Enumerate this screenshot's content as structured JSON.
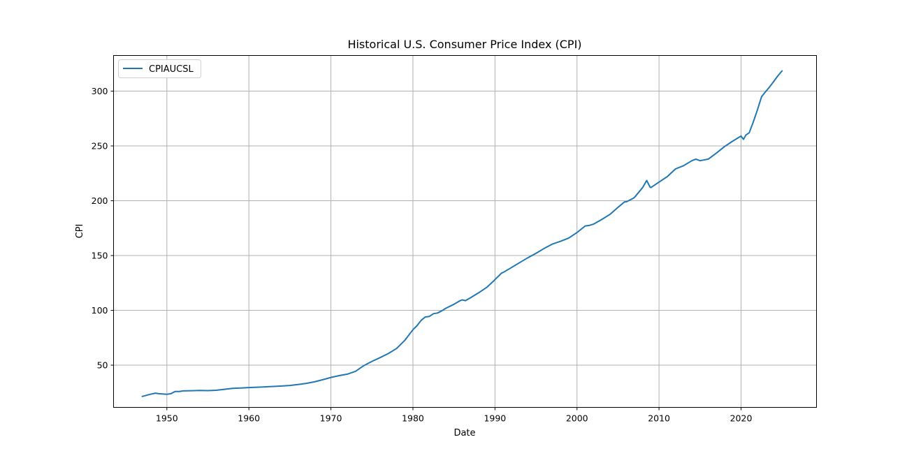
{
  "chart_data": {
    "type": "line",
    "title": "Historical U.S. Consumer Price Index (CPI)",
    "xlabel": "Date",
    "ylabel": "CPI",
    "xlim": [
      1943.5,
      2029.2
    ],
    "ylim": [
      11.5,
      332.5
    ],
    "x_ticks": [
      1950,
      1960,
      1970,
      1980,
      1990,
      2000,
      2010,
      2020
    ],
    "y_ticks": [
      50,
      100,
      150,
      200,
      250,
      300
    ],
    "grid": true,
    "legend_position": "top-left",
    "series": [
      {
        "name": "CPIAUCSL",
        "color": "#1f77b4",
        "x": [
          1947.0,
          1948.0,
          1948.6,
          1949.0,
          1950.0,
          1950.5,
          1951.0,
          1951.5,
          1952.0,
          1953.0,
          1954.0,
          1955.0,
          1956.0,
          1957.0,
          1958.0,
          1959.0,
          1960.0,
          1961.0,
          1962.0,
          1963.0,
          1964.0,
          1965.0,
          1966.0,
          1967.0,
          1968.0,
          1969.0,
          1970.0,
          1971.0,
          1972.0,
          1973.0,
          1974.0,
          1975.0,
          1976.0,
          1977.0,
          1978.0,
          1979.0,
          1980.0,
          1980.5,
          1981.0,
          1981.5,
          1982.0,
          1982.5,
          1983.0,
          1983.5,
          1984.0,
          1985.0,
          1985.8,
          1986.0,
          1986.4,
          1987.0,
          1988.0,
          1989.0,
          1990.0,
          1990.8,
          1991.0,
          1992.0,
          1993.0,
          1994.0,
          1995.0,
          1996.0,
          1997.0,
          1998.0,
          1999.0,
          2000.0,
          2001.0,
          2001.5,
          2002.0,
          2003.0,
          2004.0,
          2005.0,
          2005.8,
          2006.0,
          2006.8,
          2007.0,
          2008.0,
          2008.5,
          2008.9,
          2009.0,
          2009.5,
          2010.0,
          2011.0,
          2012.0,
          2013.0,
          2014.0,
          2014.5,
          2015.0,
          2016.0,
          2017.0,
          2018.0,
          2019.0,
          2020.0,
          2020.3,
          2020.6,
          2021.0,
          2021.5,
          2022.0,
          2022.5,
          2023.0,
          2023.5,
          2024.0,
          2024.5,
          2025.0
        ],
        "y": [
          21.5,
          23.5,
          24.5,
          24.0,
          23.5,
          24.0,
          26.0,
          26.0,
          26.5,
          26.7,
          26.9,
          26.8,
          27.1,
          28.0,
          28.9,
          29.2,
          29.6,
          29.9,
          30.2,
          30.6,
          31.0,
          31.5,
          32.4,
          33.4,
          34.8,
          36.7,
          38.8,
          40.5,
          41.8,
          44.4,
          49.5,
          53.5,
          56.9,
          60.6,
          65.2,
          72.6,
          82.4,
          86.0,
          90.9,
          94.0,
          94.5,
          97.0,
          97.6,
          99.5,
          101.9,
          105.6,
          109.0,
          109.6,
          108.9,
          111.4,
          116.0,
          121.0,
          128.0,
          134.0,
          134.6,
          139.0,
          143.5,
          148.0,
          152.0,
          156.5,
          160.5,
          163.0,
          166.0,
          171.0,
          177.0,
          177.5,
          178.6,
          182.8,
          187.5,
          194.0,
          199.0,
          199.0,
          202.0,
          203.0,
          212.0,
          218.5,
          212.5,
          212.0,
          214.5,
          217.0,
          222.0,
          229.0,
          232.0,
          236.5,
          238.0,
          236.5,
          238.0,
          243.5,
          249.5,
          254.5,
          259.0,
          256.0,
          260.0,
          262.0,
          272.0,
          283.0,
          295.0,
          299.5,
          304.0,
          309.0,
          314.0,
          318.5
        ]
      }
    ]
  }
}
